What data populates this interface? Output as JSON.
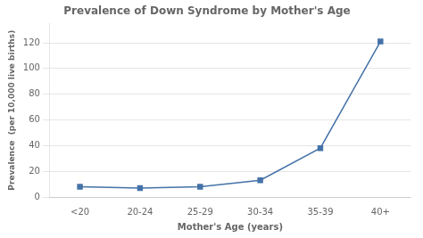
{
  "chart_data": {
    "type": "line",
    "title": "Prevalence of Down Syndrome by Mother's Age",
    "xlabel": "Mother's Age (years)",
    "ylabel": "Prevalence  (per 10,000 live births)",
    "categories": [
      "<20",
      "20-24",
      "25-29",
      "30-34",
      "35-39",
      "40+"
    ],
    "values": [
      8,
      7,
      8,
      13,
      38,
      121
    ],
    "color": "#4472a8",
    "marker": "square",
    "ylim": [
      0,
      135
    ],
    "yticks": [
      0,
      20,
      40,
      60,
      80,
      100,
      120
    ],
    "grid": true
  }
}
